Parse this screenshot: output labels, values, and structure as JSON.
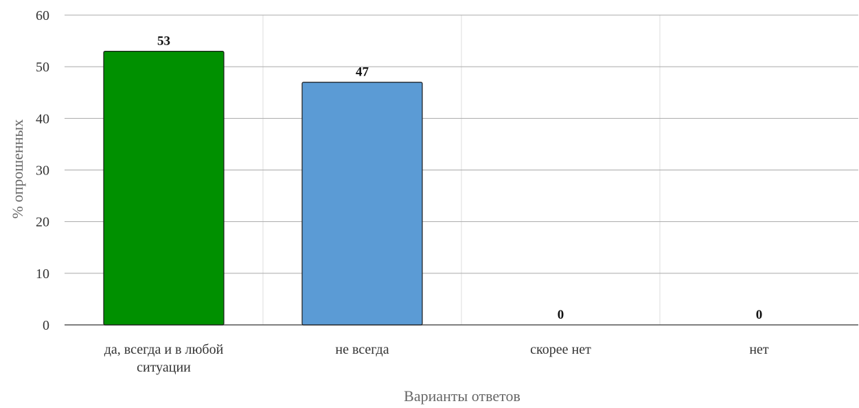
{
  "chart_data": {
    "type": "bar",
    "categories": [
      "да, всегда и в любой ситуации",
      "не всегда",
      "скорее нет",
      "нет"
    ],
    "category_label_lines": [
      [
        "да, всегда и в любой",
        "ситуации"
      ],
      [
        "не всегда"
      ],
      [
        "скорее нет"
      ],
      [
        "нет"
      ]
    ],
    "values": [
      53,
      47,
      0,
      0
    ],
    "data_labels": [
      "53",
      "47",
      "0",
      "0"
    ],
    "bar_colors": [
      "#009000",
      "#5b9bd5",
      "#5b9bd5",
      "#5b9bd5"
    ],
    "title": "",
    "xlabel": "Варианты ответов",
    "ylabel": "% опрошенных",
    "ylim": [
      0,
      60
    ],
    "yticks": [
      0,
      10,
      20,
      30,
      40,
      50,
      60
    ],
    "grid": true,
    "legend": "none"
  }
}
